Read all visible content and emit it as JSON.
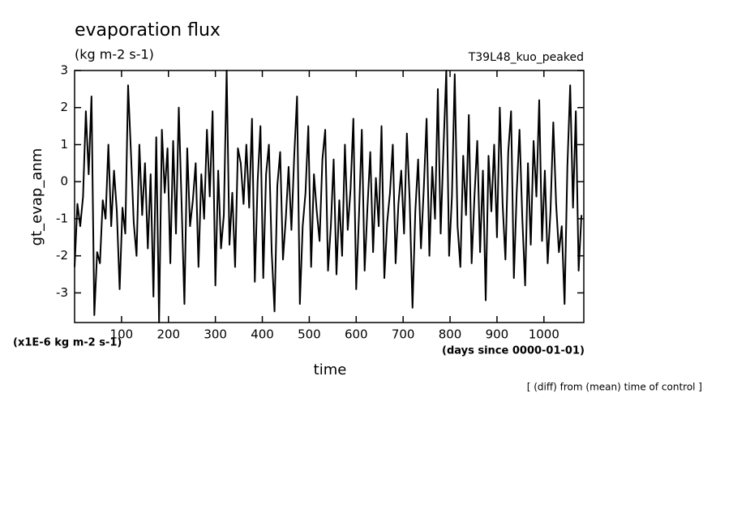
{
  "chart_data": {
    "type": "line",
    "title": "evaporation flux",
    "subtitle": "(kg m-2 s-1)",
    "run_label": "T39L48_kuo_peaked",
    "y_label": "gt_evap_anm",
    "y_unit": "(x1E-6 kg m-2 s-1)",
    "x_label": "time",
    "x_unit": "(days since 0000-01-01)",
    "note": "[ (diff) from (mean) time of control ]",
    "xlim": [
      0,
      1085
    ],
    "xticks": [
      100,
      200,
      300,
      400,
      500,
      600,
      700,
      800,
      900,
      1000
    ],
    "ylim": [
      -3.8,
      3
    ],
    "yticks": [
      -3,
      -2,
      -1,
      0,
      1,
      2,
      3
    ],
    "x": [
      0,
      6,
      12,
      18,
      24,
      30,
      36,
      42,
      48,
      54,
      60,
      66,
      72,
      78,
      84,
      90,
      96,
      102,
      108,
      114,
      120,
      126,
      132,
      138,
      144,
      150,
      156,
      162,
      168,
      174,
      180,
      186,
      192,
      198,
      204,
      210,
      216,
      222,
      228,
      234,
      240,
      246,
      252,
      258,
      264,
      270,
      276,
      282,
      288,
      294,
      300,
      306,
      312,
      318,
      324,
      330,
      336,
      342,
      348,
      354,
      360,
      366,
      372,
      378,
      384,
      390,
      396,
      402,
      408,
      414,
      420,
      426,
      432,
      438,
      444,
      450,
      456,
      462,
      468,
      474,
      480,
      486,
      492,
      498,
      504,
      510,
      516,
      522,
      528,
      534,
      540,
      546,
      552,
      558,
      564,
      570,
      576,
      582,
      588,
      594,
      600,
      606,
      612,
      618,
      624,
      630,
      636,
      642,
      648,
      654,
      660,
      666,
      672,
      678,
      684,
      690,
      696,
      702,
      708,
      714,
      720,
      726,
      732,
      738,
      744,
      750,
      756,
      762,
      768,
      774,
      780,
      786,
      792,
      798,
      804,
      810,
      816,
      822,
      828,
      834,
      840,
      846,
      852,
      858,
      864,
      870,
      876,
      882,
      888,
      894,
      900,
      906,
      912,
      918,
      924,
      930,
      936,
      942,
      948,
      954,
      960,
      966,
      972,
      978,
      984,
      990,
      996,
      1002,
      1008,
      1014,
      1020,
      1026,
      1032,
      1038,
      1044,
      1050,
      1056,
      1062,
      1068,
      1074,
      1080
    ],
    "series": [
      {
        "name": "gt_evap_anm",
        "color": "#000000",
        "values": [
          -2.3,
          -0.6,
          -1.2,
          -0.4,
          1.9,
          0.2,
          2.3,
          -3.6,
          -1.9,
          -2.2,
          -0.5,
          -1.0,
          1.0,
          -1.2,
          0.3,
          -0.8,
          -2.9,
          -0.7,
          -1.4,
          2.6,
          0.8,
          -1.1,
          -2.0,
          1.0,
          -0.9,
          0.5,
          -1.8,
          0.2,
          -3.1,
          1.2,
          -3.8,
          1.4,
          -0.3,
          0.9,
          -2.2,
          1.1,
          -1.4,
          2.0,
          -0.6,
          -3.3,
          0.9,
          -1.2,
          -0.5,
          0.5,
          -2.3,
          0.2,
          -1.0,
          1.4,
          -0.4,
          1.9,
          -2.8,
          0.3,
          -1.8,
          -0.9,
          3.0,
          -1.7,
          -0.3,
          -2.3,
          0.9,
          0.5,
          -0.6,
          1.0,
          -0.7,
          1.7,
          -2.7,
          0.0,
          1.5,
          -2.6,
          0.2,
          1.0,
          -1.9,
          -3.5,
          -0.1,
          0.8,
          -2.1,
          -1.0,
          0.4,
          -1.3,
          0.7,
          2.3,
          -3.3,
          -1.2,
          -0.3,
          1.5,
          -2.3,
          0.2,
          -0.8,
          -1.6,
          0.6,
          1.4,
          -2.4,
          -1.2,
          0.6,
          -2.5,
          -0.5,
          -2.0,
          1.0,
          -1.3,
          -0.2,
          1.7,
          -2.9,
          -0.9,
          1.4,
          -2.4,
          -0.7,
          0.8,
          -1.9,
          0.1,
          -1.2,
          1.5,
          -2.6,
          -1.1,
          -0.3,
          1.0,
          -2.2,
          -0.6,
          0.3,
          -1.4,
          1.3,
          -0.5,
          -3.4,
          -0.8,
          0.6,
          -1.8,
          -0.2,
          1.7,
          -2.0,
          0.4,
          -1.0,
          2.5,
          -1.4,
          0.9,
          3.0,
          -2.0,
          -0.4,
          2.9,
          -1.2,
          -2.3,
          0.7,
          -0.9,
          1.8,
          -2.2,
          -0.4,
          1.1,
          -1.9,
          0.3,
          -3.2,
          0.7,
          -0.8,
          1.0,
          -1.5,
          2.0,
          -0.6,
          -2.1,
          0.8,
          1.9,
          -2.6,
          -0.3,
          1.4,
          -1.0,
          -2.8,
          0.5,
          -1.7,
          1.1,
          -0.4,
          2.2,
          -1.6,
          0.3,
          -2.2,
          -0.8,
          1.6,
          -0.6,
          -1.9,
          -1.2,
          -3.3,
          0.4,
          2.6,
          -0.7,
          1.9,
          -2.4,
          -0.9
        ]
      }
    ]
  }
}
